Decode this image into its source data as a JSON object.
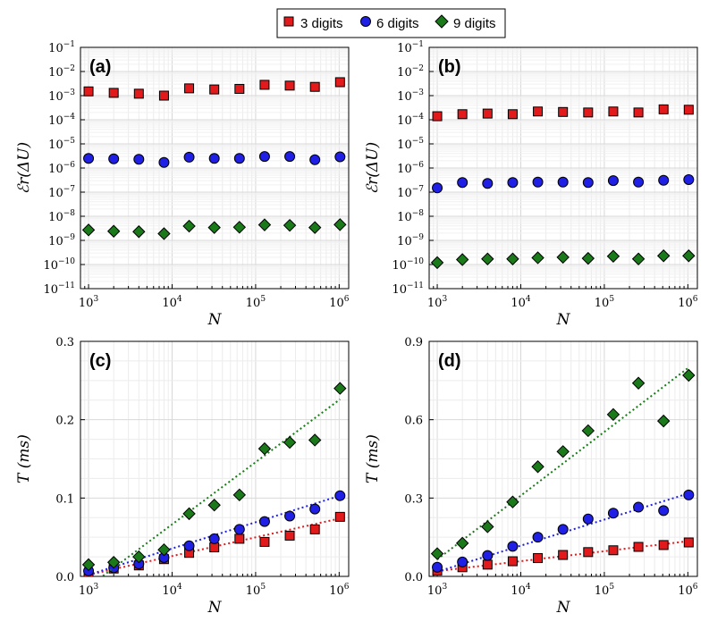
{
  "legend": {
    "entries": [
      {
        "label": "3 digits",
        "color": "#e31a1c",
        "marker": "square"
      },
      {
        "label": "6 digits",
        "color": "#1f1fe6",
        "marker": "circle"
      },
      {
        "label": "9 digits",
        "color": "#1a7a1a",
        "marker": "diamond"
      }
    ]
  },
  "chart_data": [
    {
      "panel": "(a)",
      "type": "scatter",
      "xscale": "log",
      "yscale": "log",
      "xlim": [
        800,
        1300000
      ],
      "ylim": [
        1e-11,
        0.1
      ],
      "xlabel": "N",
      "ylabel": "ℰr(ΔU)",
      "x_ticks": [
        1000,
        10000,
        100000,
        1000000
      ],
      "x_tick_labels": [
        "10^3",
        "10^4",
        "10^5",
        "10^6"
      ],
      "y_ticks": [
        1e-11,
        1e-10,
        1e-09,
        1e-08,
        1e-07,
        1e-06,
        1e-05,
        0.0001,
        0.001,
        0.01,
        0.1
      ],
      "y_tick_labels": [
        "10^-11",
        "10^-10",
        "10^-9",
        "10^-8",
        "10^-7",
        "10^-6",
        "10^-5",
        "10^-4",
        "10^-3",
        "10^-2",
        "10^-1"
      ],
      "x": [
        1000,
        2000,
        4000,
        8000,
        16000,
        32000,
        64000,
        128000,
        256000,
        512000,
        1024000
      ],
      "series": [
        {
          "name": "3 digits",
          "values": [
            0.0015,
            0.0013,
            0.0012,
            0.001,
            0.002,
            0.0018,
            0.0019,
            0.0028,
            0.0026,
            0.0023,
            0.0036
          ]
        },
        {
          "name": "6 digits",
          "values": [
            2.5e-06,
            2.4e-06,
            2.3e-06,
            1.7e-06,
            2.8e-06,
            2.5e-06,
            2.5e-06,
            3e-06,
            3e-06,
            2.2e-06,
            2.9e-06
          ]
        },
        {
          "name": "9 digits",
          "values": [
            2.7e-09,
            2.4e-09,
            2.3e-09,
            1.9e-09,
            3.9e-09,
            3.4e-09,
            3.5e-09,
            4.4e-09,
            4.2e-09,
            3.4e-09,
            4.5e-09
          ]
        }
      ]
    },
    {
      "panel": "(b)",
      "type": "scatter",
      "xscale": "log",
      "yscale": "log",
      "xlim": [
        800,
        1300000
      ],
      "ylim": [
        1e-11,
        0.1
      ],
      "xlabel": "N",
      "ylabel": "ℰr(ΔU)",
      "x_ticks": [
        1000,
        10000,
        100000,
        1000000
      ],
      "x_tick_labels": [
        "10^3",
        "10^4",
        "10^5",
        "10^6"
      ],
      "y_ticks": [
        1e-11,
        1e-10,
        1e-09,
        1e-08,
        1e-07,
        1e-06,
        1e-05,
        0.0001,
        0.001,
        0.01,
        0.1
      ],
      "y_tick_labels": [
        "10^-11",
        "10^-10",
        "10^-9",
        "10^-8",
        "10^-7",
        "10^-6",
        "10^-5",
        "10^-4",
        "10^-3",
        "10^-2",
        "10^-1"
      ],
      "x": [
        1000,
        2000,
        4000,
        8000,
        16000,
        32000,
        64000,
        128000,
        256000,
        512000,
        1024000
      ],
      "series": [
        {
          "name": "3 digits",
          "values": [
            0.00014,
            0.00017,
            0.00018,
            0.00017,
            0.00022,
            0.00021,
            0.0002,
            0.00022,
            0.0002,
            0.00027,
            0.00026
          ]
        },
        {
          "name": "6 digits",
          "values": [
            1.5e-07,
            2.5e-07,
            2.3e-07,
            2.5e-07,
            2.6e-07,
            2.6e-07,
            2.5e-07,
            3e-07,
            2.6e-07,
            3.1e-07,
            3.3e-07
          ]
        },
        {
          "name": "9 digits",
          "values": [
            1.2e-10,
            1.6e-10,
            1.7e-10,
            1.7e-10,
            1.9e-10,
            2e-10,
            1.8e-10,
            2.2e-10,
            1.7e-10,
            2.3e-10,
            2.3e-10
          ]
        }
      ]
    },
    {
      "panel": "(c)",
      "type": "scatter",
      "xscale": "log",
      "yscale": "linear",
      "xlim": [
        800,
        1300000
      ],
      "ylim": [
        0,
        0.3
      ],
      "xlabel": "N",
      "ylabel": "T (ms)",
      "x_ticks": [
        1000,
        10000,
        100000,
        1000000
      ],
      "x_tick_labels": [
        "10^3",
        "10^4",
        "10^5",
        "10^6"
      ],
      "y_ticks": [
        0,
        0.1,
        0.2,
        0.3
      ],
      "y_tick_labels": [
        "0.0",
        "0.1",
        "0.2",
        "0.3"
      ],
      "x": [
        1000,
        2000,
        4000,
        8000,
        16000,
        32000,
        64000,
        128000,
        256000,
        512000,
        1024000
      ],
      "series": [
        {
          "name": "3 digits",
          "values": [
            0.002,
            0.01,
            0.014,
            0.022,
            0.03,
            0.037,
            0.048,
            0.044,
            0.052,
            0.06,
            0.076
          ],
          "fit_start": 0.002,
          "fit_end": 0.074
        },
        {
          "name": "6 digits",
          "values": [
            0.007,
            0.011,
            0.016,
            0.024,
            0.039,
            0.048,
            0.06,
            0.07,
            0.077,
            0.086,
            0.103
          ],
          "fit_start": 0.002,
          "fit_end": 0.103
        },
        {
          "name": "9 digits",
          "values": [
            0.015,
            0.018,
            0.025,
            0.034,
            0.08,
            0.091,
            0.104,
            0.163,
            0.171,
            0.174,
            0.24
          ],
          "fit_start": -0.013,
          "fit_end": 0.226
        }
      ]
    },
    {
      "panel": "(d)",
      "type": "scatter",
      "xscale": "log",
      "yscale": "linear",
      "xlim": [
        800,
        1300000
      ],
      "ylim": [
        0,
        0.9
      ],
      "xlabel": "N",
      "ylabel": "T (ms)",
      "x_ticks": [
        1000,
        10000,
        100000,
        1000000
      ],
      "x_tick_labels": [
        "10^3",
        "10^4",
        "10^5",
        "10^6"
      ],
      "y_ticks": [
        0,
        0.3,
        0.6,
        0.9
      ],
      "y_tick_labels": [
        "0.0",
        "0.3",
        "0.6",
        "0.9"
      ],
      "x": [
        1000,
        2000,
        4000,
        8000,
        16000,
        32000,
        64000,
        128000,
        256000,
        512000,
        1024000
      ],
      "series": [
        {
          "name": "3 digits",
          "values": [
            0.022,
            0.035,
            0.045,
            0.058,
            0.07,
            0.082,
            0.093,
            0.1,
            0.113,
            0.12,
            0.13
          ],
          "fit_start": 0.02,
          "fit_end": 0.135
        },
        {
          "name": "6 digits",
          "values": [
            0.035,
            0.055,
            0.08,
            0.115,
            0.15,
            0.18,
            0.22,
            0.242,
            0.265,
            0.252,
            0.312
          ],
          "fit_start": 0.018,
          "fit_end": 0.318
        },
        {
          "name": "9 digits",
          "values": [
            0.087,
            0.127,
            0.19,
            0.285,
            0.42,
            0.478,
            0.558,
            0.62,
            0.74,
            0.595,
            0.77
          ],
          "fit_start": 0.065,
          "fit_end": 0.8
        }
      ]
    }
  ]
}
